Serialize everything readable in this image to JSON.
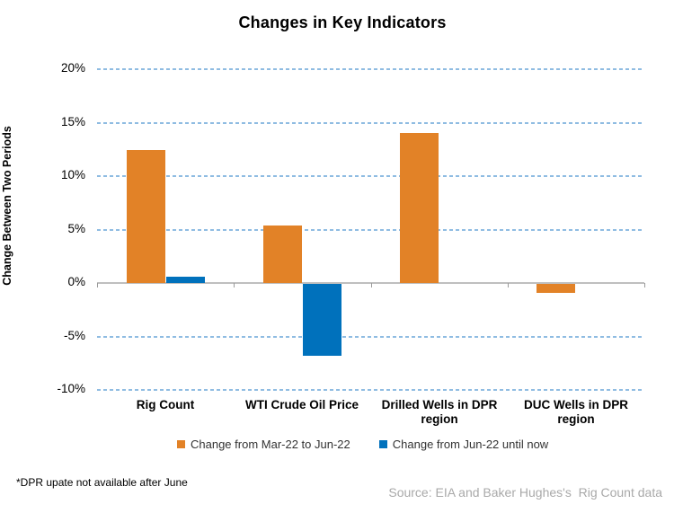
{
  "page": {
    "footnote": "*DPR upate not available after June",
    "source": "Source: EIA and Baker Hughes's  Rig Count data"
  },
  "chart_data": {
    "type": "bar",
    "title": "Changes in Key Indicators",
    "ylabel": "Change Between Two Periods",
    "xlabel": "",
    "categories": [
      "Rig Count",
      "WTI Crude Oil Price",
      "Drilled Wells in DPR region",
      "DUC Wells in DPR region"
    ],
    "series": [
      {
        "name": "Change from Mar-22 to Jun-22",
        "color": "#E28227",
        "values": [
          12.4,
          5.4,
          14.0,
          -0.8
        ]
      },
      {
        "name": "Change from Jun-22 until now",
        "color": "#0071BC",
        "values": [
          0.6,
          -6.7,
          0.0,
          0.0
        ]
      }
    ],
    "yticks": [
      {
        "value": 20,
        "label": "20%"
      },
      {
        "value": 15,
        "label": "15%"
      },
      {
        "value": 10,
        "label": "10%"
      },
      {
        "value": 5,
        "label": "5%"
      },
      {
        "value": 0,
        "label": "0%"
      },
      {
        "value": -5,
        "label": "-5%"
      },
      {
        "value": -10,
        "label": "-10%"
      }
    ],
    "ylim": [
      -10,
      20
    ],
    "grid": {
      "show": true,
      "style": "dashed",
      "color": "#8FBCE2"
    },
    "axis_color": "#BFBFBF",
    "legend_position": "bottom"
  }
}
